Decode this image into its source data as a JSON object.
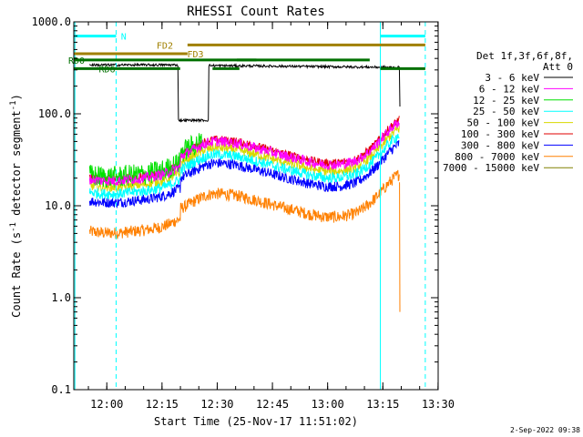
{
  "chart_data": {
    "type": "line",
    "title": "RHESSI Count Rates",
    "xlabel": "Start Time (25-Nov-17 11:51:02)",
    "ylabel_main": "Count Rate (s",
    "ylabel_sup": "-1",
    "ylabel_rest": " detector segment",
    "ylabel_sup2": "-1",
    "ylabel_close": ")",
    "y_scale": "log",
    "ylim": [
      0.1,
      1000
    ],
    "xlim_minutes_after_11_51_02": [
      0,
      99.0
    ],
    "x_ticks": [
      {
        "label": "12:00",
        "min": 8.97
      },
      {
        "label": "12:15",
        "min": 23.97
      },
      {
        "label": "12:30",
        "min": 38.97
      },
      {
        "label": "12:45",
        "min": 53.97
      },
      {
        "label": "13:00",
        "min": 68.97
      },
      {
        "label": "13:15",
        "min": 83.97
      },
      {
        "label": "13:30",
        "min": 98.97
      }
    ],
    "y_ticks": [
      {
        "label": "1000.0",
        "v": 1000
      },
      {
        "label": "100.0",
        "v": 100
      },
      {
        "label": "10.0",
        "v": 10
      },
      {
        "label": "1.0",
        "v": 1
      },
      {
        "label": "0.1",
        "v": 0.1
      }
    ],
    "legend": {
      "header1": "Det 1f,3f,6f,8f,",
      "header2": "Att 0",
      "placement": "right",
      "entries": [
        {
          "label": "3 - 6 keV",
          "color": "#000000"
        },
        {
          "label": "6 - 12 keV",
          "color": "#ff00ff"
        },
        {
          "label": "12 - 25 keV",
          "color": "#00e000"
        },
        {
          "label": "25 - 50 keV",
          "color": "#00ffff"
        },
        {
          "label": "50 - 100 keV",
          "color": "#d8d800"
        },
        {
          "label": "100 - 300 keV",
          "color": "#e00000"
        },
        {
          "label": "300 - 800 keV",
          "color": "#0000ff"
        },
        {
          "label": "800 - 7000 keV",
          "color": "#ff8000"
        },
        {
          "label": "7000 - 15000 keV",
          "color": "#808000"
        }
      ]
    },
    "flag_bars": [
      {
        "label": "N",
        "color": "#00ffff",
        "start": 0,
        "end": 11.5,
        "y": 700
      },
      {
        "label": "N",
        "color": "#00ffff",
        "start": 83.3,
        "end": 95.5,
        "y": 700
      },
      {
        "label": "FD2",
        "color": "#a08000",
        "start": 30.9,
        "end": 95.5,
        "y": 560
      },
      {
        "label": "FD3",
        "color": "#a08000",
        "start": 0,
        "end": 30.9,
        "y": 450
      },
      {
        "label": "RD0",
        "color": "#007000",
        "start": 0,
        "end": 49.6,
        "y": 385,
        "end2": 49.6
      },
      {
        "label": "RD0",
        "color": "#007000",
        "start": 44.3,
        "end": 80.4,
        "y": 385
      },
      {
        "label": "RD6",
        "color": "#007000",
        "start": 0,
        "end": 28.9,
        "y": 310
      },
      {
        "label": "RD6",
        "color": "#007000",
        "start": 37.7,
        "end": 45.0,
        "y": 310
      },
      {
        "label": "RD6",
        "color": "#007000",
        "start": 83.3,
        "end": 95.5,
        "y": 310
      }
    ],
    "vlines_solid": [
      0.3,
      83.3
    ],
    "vlines_dashed": [
      11.5,
      95.5
    ],
    "series_profile": {
      "x_keys": [
        0,
        4,
        8,
        12,
        16,
        20,
        24,
        26,
        28,
        30,
        32,
        34,
        36,
        38,
        40,
        44,
        48,
        52,
        56,
        60,
        64,
        68,
        72,
        76,
        78,
        80,
        82,
        84,
        86,
        88,
        90
      ],
      "base_6_12": [
        25,
        25,
        24,
        24,
        25,
        26,
        28,
        30,
        33,
        36,
        40,
        44,
        48,
        50,
        50,
        48,
        44,
        40,
        36,
        33,
        30,
        28,
        28,
        30,
        33,
        38,
        45,
        55,
        68,
        80,
        88
      ]
    },
    "series": [
      {
        "name": "3 - 6 keV",
        "color": "#000000",
        "kind": "flat_steps"
      },
      {
        "name": "6 - 12 keV",
        "color": "#ff00ff",
        "scale": 1.0,
        "noise": 0.13
      },
      {
        "name": "12 - 25 keV",
        "color": "#00e000",
        "scale": 1.1,
        "noise": 0.28,
        "start": 0,
        "end": 35
      },
      {
        "name": "25 - 50 keV",
        "color": "#00ffff",
        "scale": 0.72,
        "noise": 0.13
      },
      {
        "name": "50 - 100 keV",
        "color": "#d8d800",
        "scale": 0.85,
        "noise": 0.12
      },
      {
        "name": "100 - 300 keV",
        "color": "#e00000",
        "scale": 1.05,
        "noise": 0.1
      },
      {
        "name": "300 - 800 keV",
        "color": "#0000ff",
        "scale": 0.58,
        "noise": 0.13
      },
      {
        "name": "800 - 7000 keV",
        "color": "#ff8000",
        "scale": 0.27,
        "noise": 0.15
      }
    ],
    "ts_stamp": "2-Sep-2022 09:38"
  }
}
